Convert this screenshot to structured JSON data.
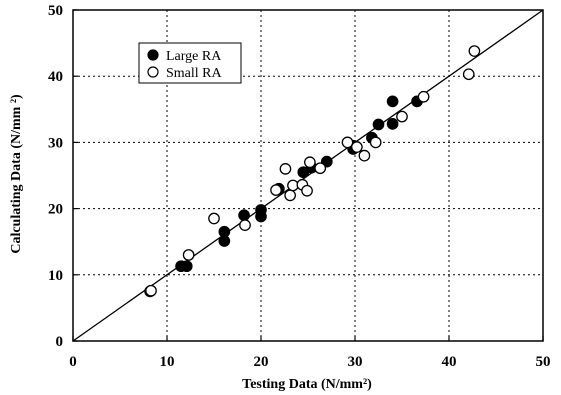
{
  "chart_data": {
    "type": "scatter",
    "title": "",
    "xlabel": "Testing Data (N/mm²)",
    "ylabel": "Calculating Data (N/mm ²)",
    "xlim": [
      0,
      50
    ],
    "ylim": [
      0,
      50
    ],
    "xticks": [
      0,
      10,
      20,
      30,
      40,
      50
    ],
    "yticks": [
      0,
      10,
      20,
      30,
      40,
      50
    ],
    "grid": true,
    "legend_position": "top-left",
    "reference_line": {
      "from": [
        0,
        0
      ],
      "to": [
        50,
        50
      ]
    },
    "series": [
      {
        "name": "Large RA",
        "marker": "filled-circle",
        "color": "#000000",
        "points": [
          [
            8.2,
            7.5
          ],
          [
            11.5,
            11.3
          ],
          [
            12.1,
            11.3
          ],
          [
            16.1,
            16.5
          ],
          [
            16.1,
            15.1
          ],
          [
            18.2,
            19.0
          ],
          [
            20.0,
            19.8
          ],
          [
            20.0,
            18.8
          ],
          [
            21.9,
            23.0
          ],
          [
            24.5,
            25.5
          ],
          [
            25.4,
            26.2
          ],
          [
            27.0,
            27.1
          ],
          [
            29.8,
            29.5
          ],
          [
            29.8,
            29.0
          ],
          [
            31.8,
            30.7
          ],
          [
            32.5,
            32.7
          ],
          [
            34.0,
            36.2
          ],
          [
            34.0,
            32.8
          ],
          [
            36.6,
            36.2
          ]
        ]
      },
      {
        "name": "Small RA",
        "marker": "open-circle",
        "color": "#000000",
        "points": [
          [
            8.3,
            7.6
          ],
          [
            12.3,
            13.0
          ],
          [
            15.0,
            18.5
          ],
          [
            18.3,
            17.5
          ],
          [
            21.6,
            22.8
          ],
          [
            22.6,
            26.0
          ],
          [
            23.1,
            22.0
          ],
          [
            23.4,
            23.5
          ],
          [
            24.4,
            23.6
          ],
          [
            24.9,
            22.7
          ],
          [
            25.2,
            27.0
          ],
          [
            26.3,
            26.1
          ],
          [
            29.2,
            30.0
          ],
          [
            30.2,
            29.3
          ],
          [
            31.0,
            28.0
          ],
          [
            32.2,
            30.0
          ],
          [
            35.0,
            33.9
          ],
          [
            37.3,
            36.9
          ],
          [
            42.1,
            40.3
          ],
          [
            42.7,
            43.8
          ]
        ]
      }
    ]
  }
}
